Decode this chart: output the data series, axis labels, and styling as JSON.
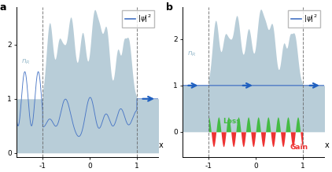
{
  "line_color": "#4472c4",
  "fill_color": "#b8cdd8",
  "arrow_color": "#2060c0",
  "green_color": "#44bb44",
  "red_color": "#ee3333",
  "dashed_color": "#666666",
  "nr_label_color": "#99bbcc",
  "title_a": "a",
  "title_b": "b",
  "legend_label": "$|\\psi|^2$",
  "xlabel": "x",
  "nr_label": "$n_R$",
  "xlim": [
    -1.55,
    1.45
  ],
  "ylim_a": [
    -0.08,
    2.7
  ],
  "ylim_b": [
    -0.55,
    2.7
  ],
  "yticks": [
    0,
    1,
    2
  ],
  "xticks": [
    -1,
    0,
    1
  ]
}
